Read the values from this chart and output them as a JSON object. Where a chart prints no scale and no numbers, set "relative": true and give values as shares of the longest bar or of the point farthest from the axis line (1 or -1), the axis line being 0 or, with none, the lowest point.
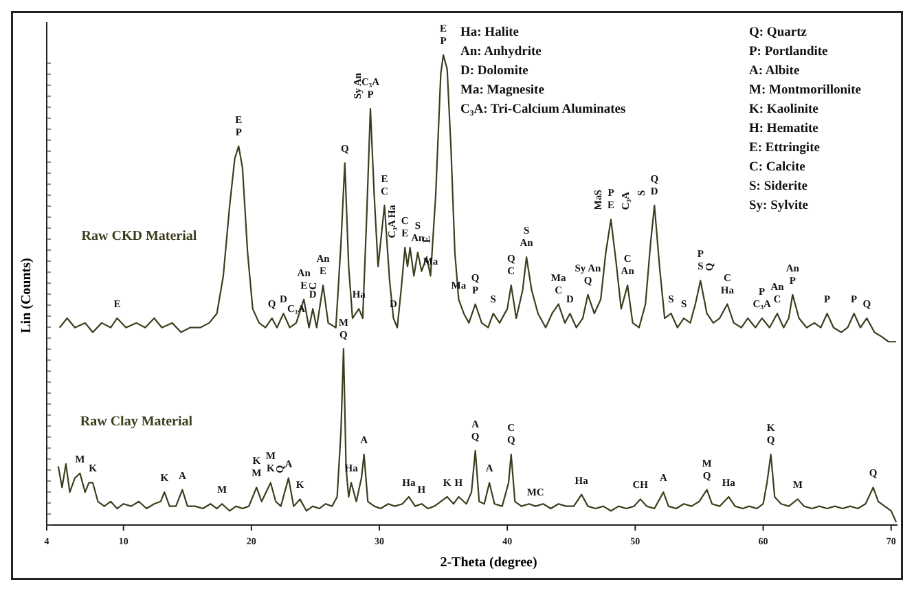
{
  "chart_data": {
    "type": "line",
    "relative": true,
    "xlabel": "2-Theta (degree)",
    "ylabel": "Lin (Counts)",
    "xlim": [
      4,
      70.5
    ],
    "xticks": [
      4,
      10,
      20,
      30,
      40,
      50,
      60,
      70
    ],
    "series": [
      {
        "name": "Raw CKD Material",
        "color": "#3d3d1e",
        "x": [
          5.0,
          5.6,
          6.2,
          7.0,
          7.6,
          8.3,
          9.0,
          9.5,
          10.2,
          11.0,
          11.7,
          12.4,
          13.0,
          13.8,
          14.5,
          15.2,
          16.0,
          16.7,
          17.3,
          17.8,
          18.3,
          18.7,
          19.0,
          19.3,
          19.7,
          20.1,
          20.6,
          21.1,
          21.6,
          22.0,
          22.5,
          23.0,
          23.5,
          24.1,
          24.5,
          24.8,
          25.1,
          25.6,
          26.0,
          26.6,
          27.0,
          27.3,
          27.6,
          27.9,
          28.4,
          28.7,
          29.0,
          29.3,
          29.6,
          29.9,
          30.4,
          30.8,
          31.1,
          31.4,
          31.7,
          32.0,
          32.2,
          32.4,
          32.7,
          33.0,
          33.3,
          33.7,
          34.0,
          34.4,
          34.8,
          35.0,
          35.3,
          35.6,
          35.9,
          36.2,
          36.6,
          37.0,
          37.5,
          38.0,
          38.5,
          38.9,
          39.4,
          40.0,
          40.3,
          40.7,
          41.2,
          41.5,
          41.9,
          42.4,
          43.0,
          43.5,
          44.0,
          44.5,
          44.9,
          45.4,
          45.9,
          46.3,
          46.8,
          47.3,
          47.7,
          48.1,
          48.5,
          48.9,
          49.4,
          49.8,
          50.3,
          50.8,
          51.2,
          51.5,
          51.9,
          52.3,
          52.8,
          53.3,
          53.8,
          54.3,
          54.7,
          55.1,
          55.6,
          56.1,
          56.6,
          57.2,
          57.7,
          58.3,
          58.8,
          59.4,
          59.9,
          60.5,
          61.1,
          61.6,
          62.0,
          62.3,
          62.8,
          63.4,
          64.0,
          64.5,
          65.0,
          65.5,
          66.1,
          66.6,
          67.1,
          67.6,
          68.1,
          68.7,
          69.3,
          69.8,
          70.4
        ],
        "values": [
          0.42,
          0.44,
          0.42,
          0.43,
          0.41,
          0.43,
          0.42,
          0.44,
          0.42,
          0.43,
          0.42,
          0.44,
          0.42,
          0.43,
          0.41,
          0.42,
          0.42,
          0.43,
          0.45,
          0.53,
          0.68,
          0.78,
          0.806,
          0.76,
          0.58,
          0.46,
          0.43,
          0.42,
          0.44,
          0.42,
          0.45,
          0.42,
          0.43,
          0.48,
          0.42,
          0.46,
          0.42,
          0.51,
          0.43,
          0.42,
          0.6,
          0.77,
          0.55,
          0.44,
          0.46,
          0.44,
          0.65,
          0.886,
          0.7,
          0.55,
          0.68,
          0.52,
          0.44,
          0.42,
          0.5,
          0.59,
          0.55,
          0.59,
          0.53,
          0.58,
          0.54,
          0.57,
          0.53,
          0.7,
          0.96,
          1.0,
          0.97,
          0.8,
          0.58,
          0.48,
          0.45,
          0.43,
          0.47,
          0.43,
          0.42,
          0.45,
          0.43,
          0.46,
          0.51,
          0.44,
          0.5,
          0.57,
          0.5,
          0.45,
          0.42,
          0.45,
          0.47,
          0.43,
          0.45,
          0.42,
          0.44,
          0.49,
          0.45,
          0.48,
          0.58,
          0.65,
          0.56,
          0.46,
          0.51,
          0.43,
          0.42,
          0.47,
          0.6,
          0.68,
          0.55,
          0.44,
          0.45,
          0.42,
          0.44,
          0.43,
          0.47,
          0.52,
          0.45,
          0.43,
          0.44,
          0.47,
          0.43,
          0.42,
          0.44,
          0.42,
          0.44,
          0.42,
          0.45,
          0.42,
          0.44,
          0.49,
          0.44,
          0.42,
          0.43,
          0.42,
          0.45,
          0.42,
          0.41,
          0.42,
          0.45,
          0.42,
          0.44,
          0.41,
          0.4,
          0.39,
          0.39
        ]
      },
      {
        "name": "Raw Clay Material",
        "color": "#3d3d1e",
        "x": [
          4.9,
          5.2,
          5.5,
          5.8,
          6.2,
          6.6,
          7.0,
          7.3,
          7.6,
          8.0,
          8.5,
          9.0,
          9.5,
          10.0,
          10.6,
          11.2,
          11.8,
          12.4,
          12.9,
          13.2,
          13.6,
          14.1,
          14.6,
          15.0,
          15.6,
          16.2,
          16.8,
          17.3,
          17.7,
          18.3,
          18.8,
          19.3,
          19.8,
          20.4,
          20.8,
          21.5,
          21.9,
          22.3,
          22.9,
          23.3,
          23.8,
          24.3,
          24.8,
          25.3,
          25.8,
          26.3,
          26.7,
          27.0,
          27.2,
          27.4,
          27.6,
          27.8,
          28.2,
          28.6,
          28.8,
          29.1,
          29.6,
          30.1,
          30.7,
          31.2,
          31.8,
          32.3,
          32.8,
          33.3,
          33.8,
          34.3,
          34.8,
          35.3,
          35.8,
          36.2,
          36.8,
          37.2,
          37.5,
          37.8,
          38.2,
          38.6,
          39.0,
          39.6,
          40.1,
          40.3,
          40.6,
          41.1,
          41.7,
          42.2,
          42.8,
          43.4,
          44.0,
          44.6,
          45.2,
          45.8,
          46.3,
          46.9,
          47.5,
          48.1,
          48.7,
          49.3,
          49.9,
          50.4,
          50.9,
          51.5,
          52.2,
          52.6,
          53.2,
          53.8,
          54.4,
          55.0,
          55.6,
          56.0,
          56.6,
          57.3,
          57.8,
          58.4,
          58.9,
          59.5,
          60.0,
          60.3,
          60.6,
          60.9,
          61.4,
          62.0,
          62.7,
          63.2,
          63.8,
          64.4,
          65.0,
          65.6,
          66.2,
          66.8,
          67.4,
          68.0,
          68.6,
          69.0,
          69.5,
          70.0,
          70.4
        ],
        "values": [
          0.125,
          0.08,
          0.13,
          0.07,
          0.1,
          0.11,
          0.07,
          0.09,
          0.09,
          0.05,
          0.04,
          0.05,
          0.035,
          0.045,
          0.04,
          0.05,
          0.035,
          0.045,
          0.05,
          0.07,
          0.04,
          0.04,
          0.075,
          0.04,
          0.04,
          0.035,
          0.045,
          0.035,
          0.045,
          0.03,
          0.04,
          0.035,
          0.04,
          0.08,
          0.05,
          0.09,
          0.05,
          0.04,
          0.1,
          0.04,
          0.055,
          0.03,
          0.04,
          0.035,
          0.045,
          0.04,
          0.06,
          0.2,
          0.375,
          0.12,
          0.06,
          0.09,
          0.05,
          0.1,
          0.15,
          0.05,
          0.04,
          0.035,
          0.045,
          0.04,
          0.045,
          0.06,
          0.04,
          0.045,
          0.035,
          0.04,
          0.05,
          0.06,
          0.045,
          0.06,
          0.045,
          0.07,
          0.158,
          0.05,
          0.045,
          0.09,
          0.045,
          0.04,
          0.09,
          0.15,
          0.05,
          0.04,
          0.045,
          0.04,
          0.045,
          0.035,
          0.045,
          0.04,
          0.04,
          0.065,
          0.04,
          0.035,
          0.04,
          0.03,
          0.04,
          0.035,
          0.04,
          0.055,
          0.04,
          0.035,
          0.07,
          0.04,
          0.035,
          0.045,
          0.04,
          0.05,
          0.075,
          0.045,
          0.04,
          0.06,
          0.04,
          0.035,
          0.04,
          0.035,
          0.045,
          0.09,
          0.15,
          0.06,
          0.045,
          0.04,
          0.055,
          0.04,
          0.035,
          0.04,
          0.035,
          0.04,
          0.035,
          0.04,
          0.035,
          0.045,
          0.08,
          0.05,
          0.04,
          0.03,
          0.006
        ]
      }
    ],
    "annotations": [
      "Ha: Halite",
      "An: Anhydrite",
      "D: Dolomite",
      "Ma: Magnesite",
      "C₃A: Tri-Calcium Aluminates",
      "Q: Quartz",
      "P: Portlandite",
      "A: Albite",
      "M: Montmorillonite",
      "K: Kaolinite",
      "H: Hematite",
      "E: Ettringite",
      "C: Calcite",
      "S: Siderite",
      "Sy: Sylvite",
      {
        "text": "E",
        "x": 9.5,
        "y": 0.44
      },
      {
        "text": "P",
        "x": 19.0,
        "y": 0.806
      },
      {
        "text": "E",
        "x": 19.0,
        "y": 0.806
      },
      {
        "text": "Q",
        "x": 21.6,
        "y": 0.44
      },
      {
        "text": "D",
        "x": 22.5,
        "y": 0.45
      },
      {
        "text": "C₃A",
        "x": 23.5,
        "y": 0.43
      },
      {
        "text": "E",
        "x": 24.1,
        "y": 0.48
      },
      {
        "text": "An",
        "x": 24.1,
        "y": 0.48
      },
      {
        "text": "C",
        "x": 24.1,
        "y": 0.48
      },
      {
        "text": "D",
        "x": 24.8,
        "y": 0.46
      },
      {
        "text": "E",
        "x": 25.6,
        "y": 0.51
      },
      {
        "text": "An",
        "x": 25.6,
        "y": 0.51
      },
      {
        "text": "Q",
        "x": 27.3,
        "y": 0.77
      },
      {
        "text": "Ha",
        "x": 28.4,
        "y": 0.46
      },
      {
        "text": "P",
        "x": 29.3,
        "y": 0.886
      },
      {
        "text": "C₃A",
        "x": 29.3,
        "y": 0.886
      },
      {
        "text": "Sy An",
        "x": 29.3,
        "y": 0.886
      },
      {
        "text": "C",
        "x": 30.4,
        "y": 0.68
      },
      {
        "text": "E",
        "x": 30.4,
        "y": 0.68
      },
      {
        "text": "D",
        "x": 31.1,
        "y": 0.44
      },
      {
        "text": "E",
        "x": 32.0,
        "y": 0.59
      },
      {
        "text": "C",
        "x": 32.0,
        "y": 0.59
      },
      {
        "text": "C₃A Ha",
        "x": 32.0,
        "y": 0.59
      },
      {
        "text": "An",
        "x": 33.0,
        "y": 0.58
      },
      {
        "text": "S",
        "x": 33.0,
        "y": 0.58
      },
      {
        "text": "E",
        "x": 33.0,
        "y": 0.58
      },
      {
        "text": "Ma",
        "x": 34.0,
        "y": 0.53
      },
      {
        "text": "P",
        "x": 35.0,
        "y": 1.0
      },
      {
        "text": "E",
        "x": 35.0,
        "y": 1.0
      },
      {
        "text": "Ma",
        "x": 36.2,
        "y": 0.48
      },
      {
        "text": "P",
        "x": 37.5,
        "y": 0.47
      },
      {
        "text": "Q",
        "x": 37.5,
        "y": 0.47
      },
      {
        "text": "S",
        "x": 38.9,
        "y": 0.45
      },
      {
        "text": "C",
        "x": 40.3,
        "y": 0.51
      },
      {
        "text": "Q",
        "x": 40.3,
        "y": 0.51
      },
      {
        "text": "An",
        "x": 41.5,
        "y": 0.57
      },
      {
        "text": "S",
        "x": 41.5,
        "y": 0.57
      },
      {
        "text": "C",
        "x": 44.0,
        "y": 0.47
      },
      {
        "text": "Ma",
        "x": 44.0,
        "y": 0.47
      },
      {
        "text": "D",
        "x": 44.9,
        "y": 0.45
      },
      {
        "text": "Q",
        "x": 46.3,
        "y": 0.49
      },
      {
        "text": "Sy An",
        "x": 46.3,
        "y": 0.49
      },
      {
        "text": "E",
        "x": 48.1,
        "y": 0.65
      },
      {
        "text": "P",
        "x": 48.1,
        "y": 0.65
      },
      {
        "text": "Ma",
        "x": 48.1,
        "y": 0.65
      },
      {
        "text": "C₃A",
        "x": 48.1,
        "y": 0.65
      },
      {
        "text": "S",
        "x": 48.1,
        "y": 0.65
      },
      {
        "text": "An",
        "x": 49.4,
        "y": 0.51
      },
      {
        "text": "C",
        "x": 49.4,
        "y": 0.51
      },
      {
        "text": "D",
        "x": 51.5,
        "y": 0.68
      },
      {
        "text": "Q",
        "x": 51.5,
        "y": 0.68
      },
      {
        "text": "S",
        "x": 51.5,
        "y": 0.68
      },
      {
        "text": "S",
        "x": 52.8,
        "y": 0.45
      },
      {
        "text": "S",
        "x": 53.8,
        "y": 0.44
      },
      {
        "text": "S",
        "x": 55.1,
        "y": 0.52
      },
      {
        "text": "P",
        "x": 55.1,
        "y": 0.52
      },
      {
        "text": "Q",
        "x": 55.1,
        "y": 0.52
      },
      {
        "text": "Ha",
        "x": 57.2,
        "y": 0.47
      },
      {
        "text": "C",
        "x": 57.2,
        "y": 0.47
      },
      {
        "text": "C₃A",
        "x": 59.9,
        "y": 0.44
      },
      {
        "text": "P",
        "x": 59.9,
        "y": 0.44
      },
      {
        "text": "C",
        "x": 61.1,
        "y": 0.45
      },
      {
        "text": "An",
        "x": 61.1,
        "y": 0.45
      },
      {
        "text": "P",
        "x": 62.3,
        "y": 0.49
      },
      {
        "text": "An",
        "x": 62.3,
        "y": 0.49
      },
      {
        "text": "P",
        "x": 65.0,
        "y": 0.45
      },
      {
        "text": "P",
        "x": 67.1,
        "y": 0.45
      },
      {
        "text": "Q",
        "x": 68.1,
        "y": 0.44
      },
      {
        "text": "M",
        "x": 6.6,
        "y": 0.11
      },
      {
        "text": "K",
        "x": 7.6,
        "y": 0.09
      },
      {
        "text": "K",
        "x": 13.2,
        "y": 0.07
      },
      {
        "text": "A",
        "x": 14.6,
        "y": 0.075
      },
      {
        "text": "M",
        "x": 17.7,
        "y": 0.045
      },
      {
        "text": "M",
        "x": 20.4,
        "y": 0.08
      },
      {
        "text": "K",
        "x": 20.4,
        "y": 0.08
      },
      {
        "text": "K",
        "x": 21.5,
        "y": 0.09
      },
      {
        "text": "M",
        "x": 21.5,
        "y": 0.09
      },
      {
        "text": "Q",
        "x": 21.5,
        "y": 0.09
      },
      {
        "text": "A",
        "x": 22.9,
        "y": 0.1
      },
      {
        "text": "K",
        "x": 23.8,
        "y": 0.055
      },
      {
        "text": "Q",
        "x": 27.2,
        "y": 0.375
      },
      {
        "text": "M",
        "x": 27.2,
        "y": 0.375
      },
      {
        "text": "Ha",
        "x": 27.8,
        "y": 0.09
      },
      {
        "text": "A",
        "x": 28.8,
        "y": 0.15
      },
      {
        "text": "Ha",
        "x": 32.3,
        "y": 0.06
      },
      {
        "text": "H",
        "x": 33.3,
        "y": 0.045
      },
      {
        "text": "K",
        "x": 35.3,
        "y": 0.06
      },
      {
        "text": "H",
        "x": 36.2,
        "y": 0.06
      },
      {
        "text": "Q",
        "x": 37.5,
        "y": 0.158
      },
      {
        "text": "A",
        "x": 37.5,
        "y": 0.158
      },
      {
        "text": "A",
        "x": 38.6,
        "y": 0.09
      },
      {
        "text": "Q",
        "x": 40.3,
        "y": 0.15
      },
      {
        "text": "C",
        "x": 40.3,
        "y": 0.15
      },
      {
        "text": "MC",
        "x": 42.2,
        "y": 0.04
      },
      {
        "text": "Ha",
        "x": 45.8,
        "y": 0.065
      },
      {
        "text": "CH",
        "x": 50.4,
        "y": 0.055
      },
      {
        "text": "A",
        "x": 52.2,
        "y": 0.07
      },
      {
        "text": "Q",
        "x": 55.6,
        "y": 0.075
      },
      {
        "text": "M",
        "x": 55.6,
        "y": 0.075
      },
      {
        "text": "Ha",
        "x": 57.3,
        "y": 0.06
      },
      {
        "text": "Q",
        "x": 60.6,
        "y": 0.15
      },
      {
        "text": "K",
        "x": 60.6,
        "y": 0.15
      },
      {
        "text": "M",
        "x": 62.7,
        "y": 0.055
      },
      {
        "text": "Q",
        "x": 68.6,
        "y": 0.08
      }
    ]
  }
}
